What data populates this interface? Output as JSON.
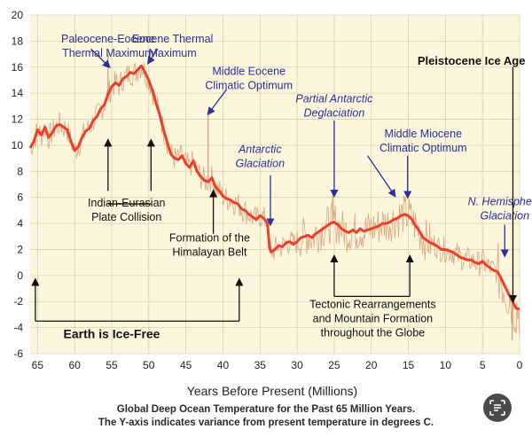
{
  "chart_data": {
    "type": "line",
    "xlabel": "Years Before Present (Millions)",
    "ylabel": "",
    "xlim": [
      66,
      0
    ],
    "ylim": [
      -6,
      20
    ],
    "x_ticks": [
      65,
      60,
      55,
      50,
      45,
      40,
      35,
      30,
      25,
      20,
      15,
      10,
      5,
      0
    ],
    "y_ticks": [
      20,
      18,
      16,
      14,
      12,
      10,
      8,
      6,
      4,
      2,
      0,
      -2,
      -4,
      -6
    ],
    "grid": true,
    "series": [
      {
        "color": "#e8402c",
        "x": [
          66,
          65.5,
          65,
          64.5,
          64,
          63.5,
          63,
          62.5,
          62,
          61.5,
          61,
          60.5,
          60,
          59.5,
          59,
          58.5,
          58,
          57.5,
          57,
          56.5,
          56,
          55.5,
          55,
          54.5,
          54,
          53.5,
          53,
          52.5,
          52,
          51.5,
          51,
          50.5,
          50,
          49.5,
          49,
          48.5,
          48,
          47.5,
          47,
          46.5,
          46,
          45.5,
          45,
          44.5,
          44,
          43.5,
          43,
          42.5,
          42,
          41.5,
          41,
          40.5,
          40,
          39.5,
          39,
          38.5,
          38,
          37.5,
          37,
          36.5,
          36,
          35.5,
          35,
          34.5,
          34,
          33.7,
          33.5,
          33,
          32.5,
          32,
          31.5,
          31,
          30.5,
          30,
          29.5,
          29,
          28.5,
          28,
          27.5,
          27,
          26.5,
          26,
          25.5,
          25,
          24.5,
          24,
          23.5,
          23,
          22.5,
          22,
          21.5,
          21,
          20.5,
          20,
          19.5,
          19,
          18.5,
          18,
          17.5,
          17,
          16.5,
          16,
          15.5,
          15,
          14.5,
          14,
          13.5,
          13,
          12.5,
          12,
          11.5,
          11,
          10.5,
          10,
          9.5,
          9,
          8.5,
          8,
          7.5,
          7,
          6.5,
          6,
          5.5,
          5,
          4.5,
          4,
          3.5,
          3,
          2.5,
          2,
          1.5,
          1,
          0.5,
          0
        ],
        "values": [
          9.8,
          10.3,
          11.2,
          10.8,
          11.4,
          10.6,
          11.0,
          11.5,
          11.6,
          11.4,
          11.2,
          10.3,
          9.6,
          9.9,
          10.6,
          11.1,
          11.3,
          11.9,
          12.2,
          12.8,
          13.1,
          13.9,
          14.5,
          14.8,
          14.6,
          15.1,
          15.3,
          15.6,
          15.5,
          15.8,
          16.1,
          15.6,
          15.0,
          14.2,
          13.2,
          12.3,
          11.2,
          10.2,
          9.3,
          9.0,
          8.9,
          9.2,
          8.6,
          8.3,
          8.8,
          8.0,
          7.6,
          7.3,
          7.2,
          7.5,
          6.8,
          6.5,
          6.1,
          5.9,
          5.8,
          5.6,
          5.5,
          5.1,
          5.0,
          4.7,
          4.5,
          4.3,
          4.6,
          4.4,
          4.0,
          2.1,
          1.8,
          2.0,
          2.3,
          2.2,
          2.5,
          2.6,
          2.4,
          2.6,
          2.9,
          3.0,
          3.1,
          2.9,
          3.2,
          3.4,
          3.6,
          3.8,
          4.0,
          4.1,
          3.9,
          3.6,
          3.4,
          3.3,
          3.5,
          3.3,
          3.6,
          3.4,
          3.5,
          3.6,
          3.7,
          3.8,
          4.0,
          4.0,
          4.1,
          4.3,
          4.4,
          4.6,
          4.7,
          4.6,
          4.3,
          3.8,
          3.4,
          2.9,
          2.7,
          2.5,
          2.4,
          2.2,
          2.0,
          2.0,
          1.9,
          1.8,
          1.6,
          1.4,
          1.3,
          1.2,
          1.2,
          1.0,
          0.9,
          1.1,
          0.8,
          0.6,
          0.4,
          0.3,
          -0.2,
          -0.8,
          -1.4,
          -1.9,
          -2.5,
          -2.6
        ]
      }
    ],
    "annotations": [
      {
        "lines": [
          "Paleocene-Eocene",
          "Thermal Maximum"
        ],
        "at": [
          55.5,
          17.9
        ],
        "color": "#2b2f9a",
        "italic": false,
        "arrow_from": [
          57.8,
          17.4
        ],
        "arrow_to": [
          55.3,
          16.0
        ]
      },
      {
        "lines": [
          "Eocene Thermal",
          "Maximum"
        ],
        "at": [
          46.8,
          17.9
        ],
        "color": "#2b2f9a",
        "italic": false,
        "arrow_from": [
          48.8,
          17.4
        ],
        "arrow_to": [
          50.1,
          16.3
        ]
      },
      {
        "lines": [
          "Middle Eocene",
          "Climatic Optimum"
        ],
        "at": [
          36.5,
          15.4
        ],
        "color": "#2b2f9a",
        "italic": false,
        "arrow_from": [
          39.5,
          14.3
        ],
        "arrow_to": [
          42.0,
          12.4
        ]
      },
      {
        "lines": [
          "Partial Antarctic",
          "Deglaciation"
        ],
        "at": [
          25.0,
          13.3
        ],
        "color": "#2b2f9a",
        "italic": true,
        "arrow_from": [
          25.0,
          11.9
        ],
        "arrow_to": [
          25.0,
          6.1
        ]
      },
      {
        "lines": [
          "Middle Miocene",
          "Climatic Optimum"
        ],
        "at": [
          13.0,
          10.6
        ],
        "color": "#2b2f9a",
        "italic": false,
        "arrow_from": [
          15.1,
          9.2
        ],
        "arrow_to": [
          15.1,
          6.0
        ],
        "arrow2_from": [
          20.5,
          9.2
        ],
        "arrow2_to": [
          16.8,
          6.1
        ]
      },
      {
        "lines": [
          "Antarctic",
          "Glaciation"
        ],
        "at": [
          35.0,
          9.4
        ],
        "color": "#2b2f9a",
        "italic": true,
        "arrow_from": [
          33.6,
          7.7
        ],
        "arrow_to": [
          33.6,
          3.9
        ]
      },
      {
        "lines": [
          "N. Hemisphere",
          "Glaciation"
        ],
        "at": [
          2.0,
          5.4
        ],
        "color": "#2b2f9a",
        "italic": true,
        "arrow_from": [
          2.0,
          3.9
        ],
        "arrow_to": [
          2.0,
          1.5
        ]
      },
      {
        "lines": [
          "Pleistocene Ice Age"
        ],
        "at": [
          6.5,
          16.2
        ],
        "color": "#111111",
        "bold": true,
        "arrow_from": [
          0.9,
          16.0
        ],
        "arrow_to": [
          0.9,
          -2.0
        ]
      },
      {
        "lines": [
          "Indian-Eurasian",
          "Plate Collision"
        ],
        "at": [
          53.0,
          5.3
        ],
        "color": "#111111",
        "bracket": [
          [
            55.5,
            6.5
          ],
          [
            55.5,
            10.4
          ],
          [
            49.7,
            6.5
          ],
          [
            49.7,
            10.4
          ]
        ],
        "bracket_base_y": 5.5
      },
      {
        "lines": [
          "Formation of the",
          "Himalayan Belt"
        ],
        "at": [
          41.8,
          2.6
        ],
        "color": "#111111",
        "arrow_from": [
          41.3,
          3.2
        ],
        "arrow_to": [
          41.3,
          6.5
        ]
      },
      {
        "lines": [
          "Tectonic Rearrangements",
          "and Mountain Formation",
          "throughout the Globe"
        ],
        "at": [
          19.8,
          -2.5
        ],
        "color": "#111111",
        "bracket": [
          [
            25.0,
            -1.6
          ],
          [
            25.0,
            1.5
          ],
          [
            14.8,
            -1.6
          ],
          [
            14.8,
            1.5
          ]
        ],
        "bracket_base_y": -1.6
      },
      {
        "lines": [
          "Earth is Ice-Free"
        ],
        "at": [
          55.0,
          -4.8
        ],
        "color": "#111111",
        "bold": true,
        "big": true,
        "bracket": [
          [
            65.3,
            -3.5
          ],
          [
            65.3,
            -0.3
          ],
          [
            37.8,
            -3.5
          ],
          [
            37.8,
            -0.3
          ]
        ],
        "bracket_base_y": -3.5
      }
    ],
    "caption": [
      "Global Deep Ocean Temperature for the Past 65 Million Years.",
      "The Y-axis indicates variance from present temperature in degrees C."
    ]
  },
  "colors": {
    "plot_bg": "#fbf6dc",
    "grid": "#d8d2b4",
    "line": "#e8402c",
    "noise": "#d49a72",
    "annotation_blue": "#2b2f9a"
  },
  "icons": {
    "scan_button": "text-scan-icon"
  }
}
